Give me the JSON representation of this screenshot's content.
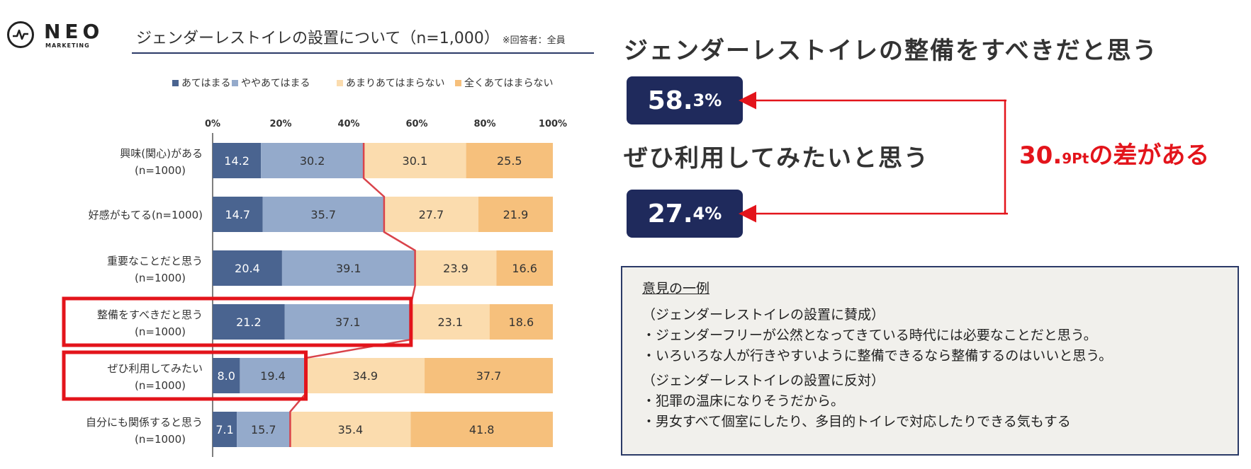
{
  "logo": {
    "name": "NEO",
    "subtitle": "MARKETING"
  },
  "chart_title": "ジェンダーレストイレの設置について（n=1,000）",
  "chart_title_note": "※回答者：全員",
  "chart_data": {
    "type": "bar",
    "orientation": "horizontal",
    "stacked": true,
    "xlim": [
      0,
      100
    ],
    "x_ticks": [
      "0%",
      "20%",
      "40%",
      "60%",
      "80%",
      "100%"
    ],
    "legend": [
      "あてはまる",
      "ややあてはまる",
      "あまりあてはまらない",
      "全くあてはまらない"
    ],
    "legend_placement": "top",
    "colors": [
      "#4a6490",
      "#94aacb",
      "#fbdcae",
      "#f6c07c"
    ],
    "connector_color": "#d9434a",
    "highlight_color": "#e3141b",
    "highlighted_categories": [
      3,
      4
    ],
    "categories": [
      {
        "label1": "興味(関心)がある",
        "label2": "(n=1000)"
      },
      {
        "label1": "好感がもてる(n=1000)",
        "label2": ""
      },
      {
        "label1": "重要なことだと思う",
        "label2": "(n=1000)"
      },
      {
        "label1": "整備をすべきだと思う",
        "label2": "(n=1000)"
      },
      {
        "label1": "ぜひ利用してみたい",
        "label2": "(n=1000)"
      },
      {
        "label1": "自分にも関係すると思う",
        "label2": "(n=1000)"
      }
    ],
    "series": [
      {
        "name": "あてはまる",
        "values": [
          14.2,
          14.7,
          20.4,
          21.2,
          8.0,
          7.1
        ]
      },
      {
        "name": "ややあてはまる",
        "values": [
          30.2,
          35.7,
          39.1,
          37.1,
          19.4,
          15.7
        ]
      },
      {
        "name": "あまりあてはまらない",
        "values": [
          30.1,
          27.7,
          23.9,
          23.1,
          34.9,
          35.4
        ]
      },
      {
        "name": "全くあてはまらない",
        "values": [
          25.5,
          21.9,
          16.6,
          18.6,
          37.7,
          41.8
        ]
      }
    ],
    "value_labels": [
      [
        "14.2",
        "14.7",
        "20.4",
        "21.2",
        "8.0",
        "7.1"
      ],
      [
        "30.2",
        "35.7",
        "39.1",
        "37.1",
        "19.4",
        "15.7"
      ],
      [
        "30.1",
        "27.7",
        "23.9",
        "23.1",
        "34.9",
        "35.4"
      ],
      [
        "25.5",
        "21.9",
        "16.6",
        "18.6",
        "37.7",
        "41.8"
      ]
    ]
  },
  "right": {
    "heading1": "ジェンダーレストイレの整備をすべきだと思う",
    "value1_big": "58.",
    "value1_small": "3%",
    "heading2": "ぜひ利用してみたいと思う",
    "value2_big": "27.",
    "value2_small": "4%",
    "diff_big": "30.",
    "diff_small": "9Pt",
    "diff_suffix": "の差がある",
    "arrow_color": "#e3141b",
    "box_color": "#1f2a5c"
  },
  "opinions": {
    "title": "意見の一例",
    "pro_heading": "（ジェンダーレストイレの設置に賛成）",
    "pro_items": [
      "・ジェンダーフリーが公然となってきている時代には必要なことだと思う。",
      "・いろいろな人が行きやすいように整備できるなら整備するのはいいと思う。"
    ],
    "con_heading": "（ジェンダーレストイレの設置に反対）",
    "con_items": [
      "・犯罪の温床になりそうだから。",
      "・男女すべて個室にしたり、多目的トイレで対応したりできる気もする"
    ]
  }
}
